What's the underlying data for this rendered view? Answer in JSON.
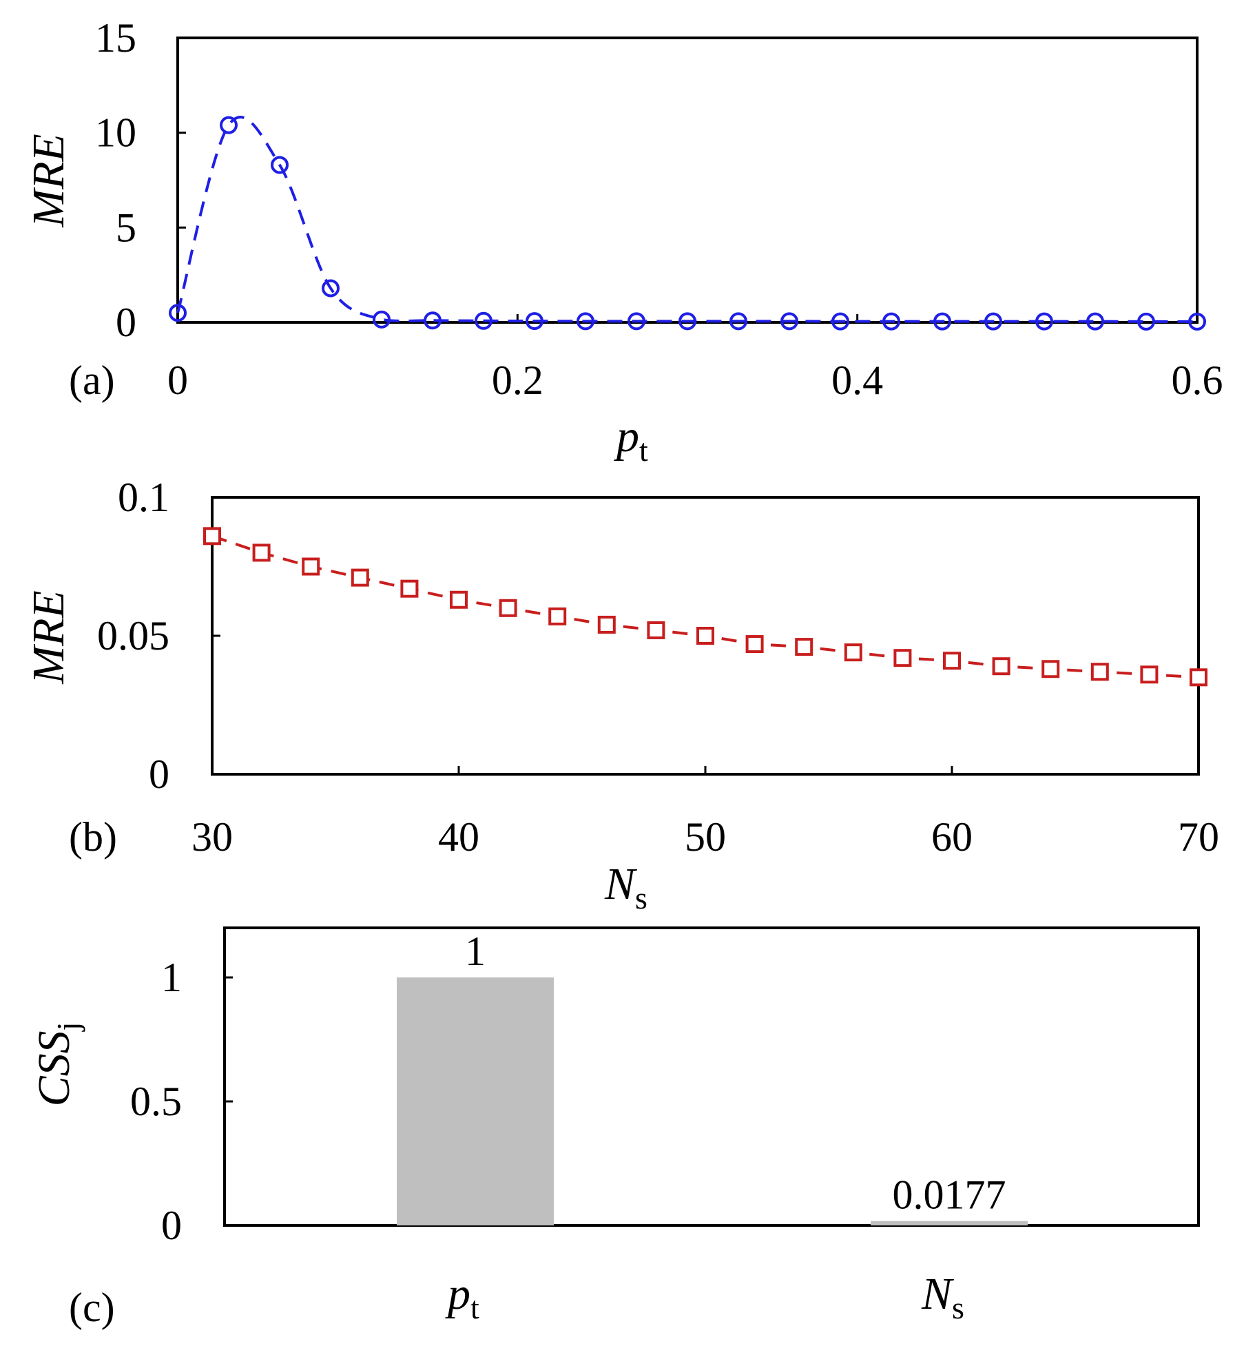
{
  "chart_data": [
    {
      "panel_label": "(a)",
      "type": "line",
      "xlabel": "p",
      "xlabel_sub": "t",
      "ylabel": "MRE",
      "xlim": [
        0,
        0.6
      ],
      "ylim": [
        0,
        15
      ],
      "xticks": [
        "0",
        "0.2",
        "0.4",
        "0.6"
      ],
      "yticks": [
        "15",
        "10",
        "5",
        "0"
      ],
      "color": "#1f1fe6",
      "marker": "circle",
      "line_style": "dashed",
      "x": [
        0,
        0.03,
        0.06,
        0.09,
        0.12,
        0.15,
        0.18,
        0.21,
        0.24,
        0.27,
        0.3,
        0.33,
        0.36,
        0.39,
        0.42,
        0.45,
        0.48,
        0.51,
        0.54,
        0.57,
        0.6
      ],
      "y": [
        0.5,
        10.4,
        8.3,
        1.8,
        0.15,
        0.1,
        0.08,
        0.07,
        0.06,
        0.06,
        0.06,
        0.06,
        0.06,
        0.05,
        0.05,
        0.05,
        0.05,
        0.05,
        0.05,
        0.04,
        0.04
      ]
    },
    {
      "panel_label": "(b)",
      "type": "line",
      "xlabel": "N",
      "xlabel_sub": "s",
      "ylabel": "MRE",
      "xlim": [
        30,
        70
      ],
      "ylim": [
        0,
        0.1
      ],
      "xticks": [
        "30",
        "40",
        "50",
        "60",
        "70"
      ],
      "yticks": [
        "0.1",
        "0.05",
        "0"
      ],
      "color": "#c81e1e",
      "marker": "square",
      "line_style": "dashed",
      "x": [
        30,
        32,
        34,
        36,
        38,
        40,
        42,
        44,
        46,
        48,
        50,
        52,
        54,
        56,
        58,
        60,
        62,
        64,
        66,
        68,
        70
      ],
      "y": [
        0.086,
        0.08,
        0.075,
        0.071,
        0.067,
        0.063,
        0.06,
        0.057,
        0.054,
        0.052,
        0.05,
        0.047,
        0.046,
        0.044,
        0.042,
        0.041,
        0.039,
        0.038,
        0.037,
        0.036,
        0.035
      ]
    },
    {
      "panel_label": "(c)",
      "type": "bar",
      "ylabel": "CSS",
      "ylabel_sub": "j",
      "ylim": [
        0,
        1.2
      ],
      "yticks": [
        "1",
        "0.5",
        "0"
      ],
      "color": "#bfbfbf",
      "categories": [
        {
          "main": "p",
          "sub": "t"
        },
        {
          "main": "N",
          "sub": "s"
        }
      ],
      "values": [
        1,
        0.0177
      ],
      "value_labels": [
        "1",
        "0.0177"
      ]
    }
  ]
}
